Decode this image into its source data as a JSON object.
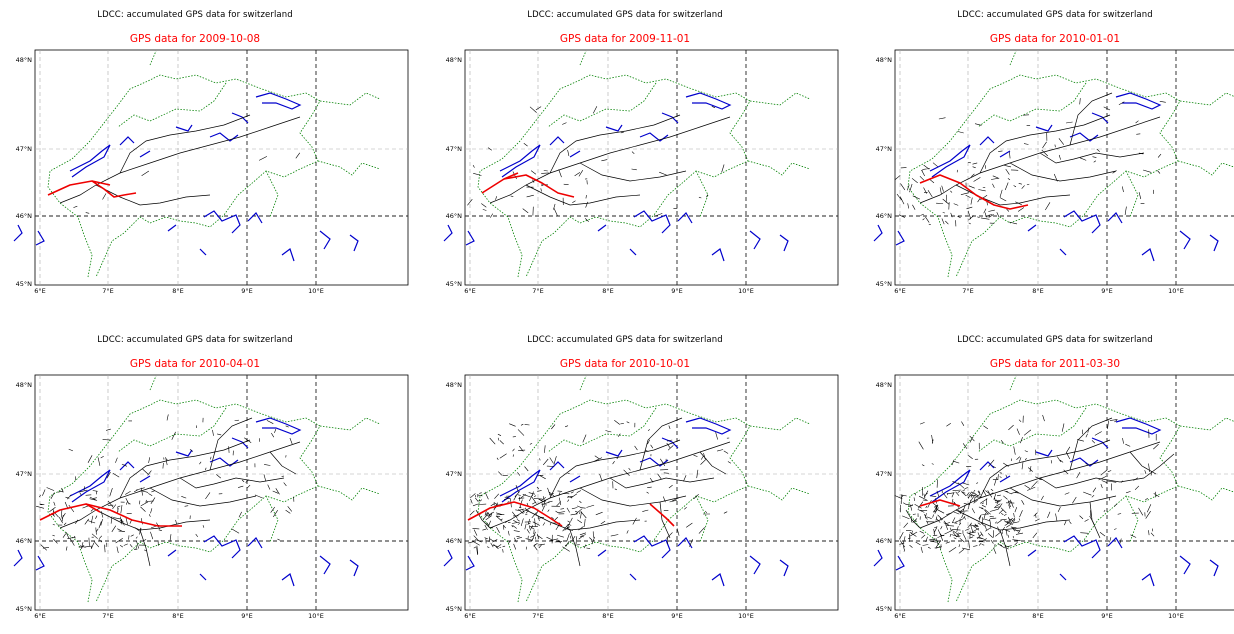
{
  "figure": {
    "colors": {
      "border": "#008000",
      "water": "#0000cc",
      "track": "#000000",
      "recent": "#ee0000",
      "meridian_light": "#aaaaaa",
      "meridian_dark": "#222222"
    },
    "lon_labels": [
      "6°E",
      "7°E",
      "8°E",
      "9°E",
      "10°E"
    ],
    "lat_labels": [
      "48°N",
      "47°N",
      "46°N",
      "45°N"
    ],
    "panels": [
      {
        "suptitle": "LDCC: accumulated GPS data for switzerland",
        "subtitle": "GPS data for 2009-10-08",
        "coverage": 0.12
      },
      {
        "suptitle": "LDCC: accumulated GPS data for switzerland",
        "subtitle": "GPS data for 2009-11-01",
        "coverage": 0.35
      },
      {
        "suptitle": "LDCC: accumulated GPS data for switzerland",
        "subtitle": "GPS data for 2010-01-01",
        "coverage": 0.55
      },
      {
        "suptitle": "LDCC: accumulated GPS data for switzerland",
        "subtitle": "GPS data for 2010-04-01",
        "coverage": 0.7
      },
      {
        "suptitle": "LDCC: accumulated GPS data for switzerland",
        "subtitle": "GPS data for 2010-10-01",
        "coverage": 0.88
      },
      {
        "suptitle": "LDCC: accumulated GPS data for switzerland",
        "subtitle": "GPS data for 2011-03-30",
        "coverage": 1.0
      }
    ]
  }
}
